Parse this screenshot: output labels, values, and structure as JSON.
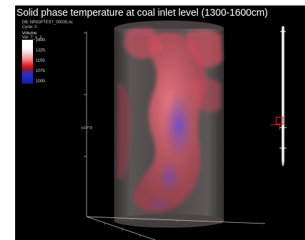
{
  "title": "Solid phase temperature at coal inlet level (1300-1600cm)",
  "meta": {
    "db": "DB: NRIOPTEST_00035.nc",
    "cycle": "Cycle: 0"
  },
  "legend": {
    "heading": "Volume",
    "var": "Var: T_s_1",
    "ticks": [
      "1300.",
      "1225.",
      "1150.",
      "1075.",
      "1000."
    ]
  },
  "scale_label": "(x10^3)",
  "colors": {
    "background": "#000000",
    "hot": "#e85060",
    "cool": "#3a3ad0"
  }
}
